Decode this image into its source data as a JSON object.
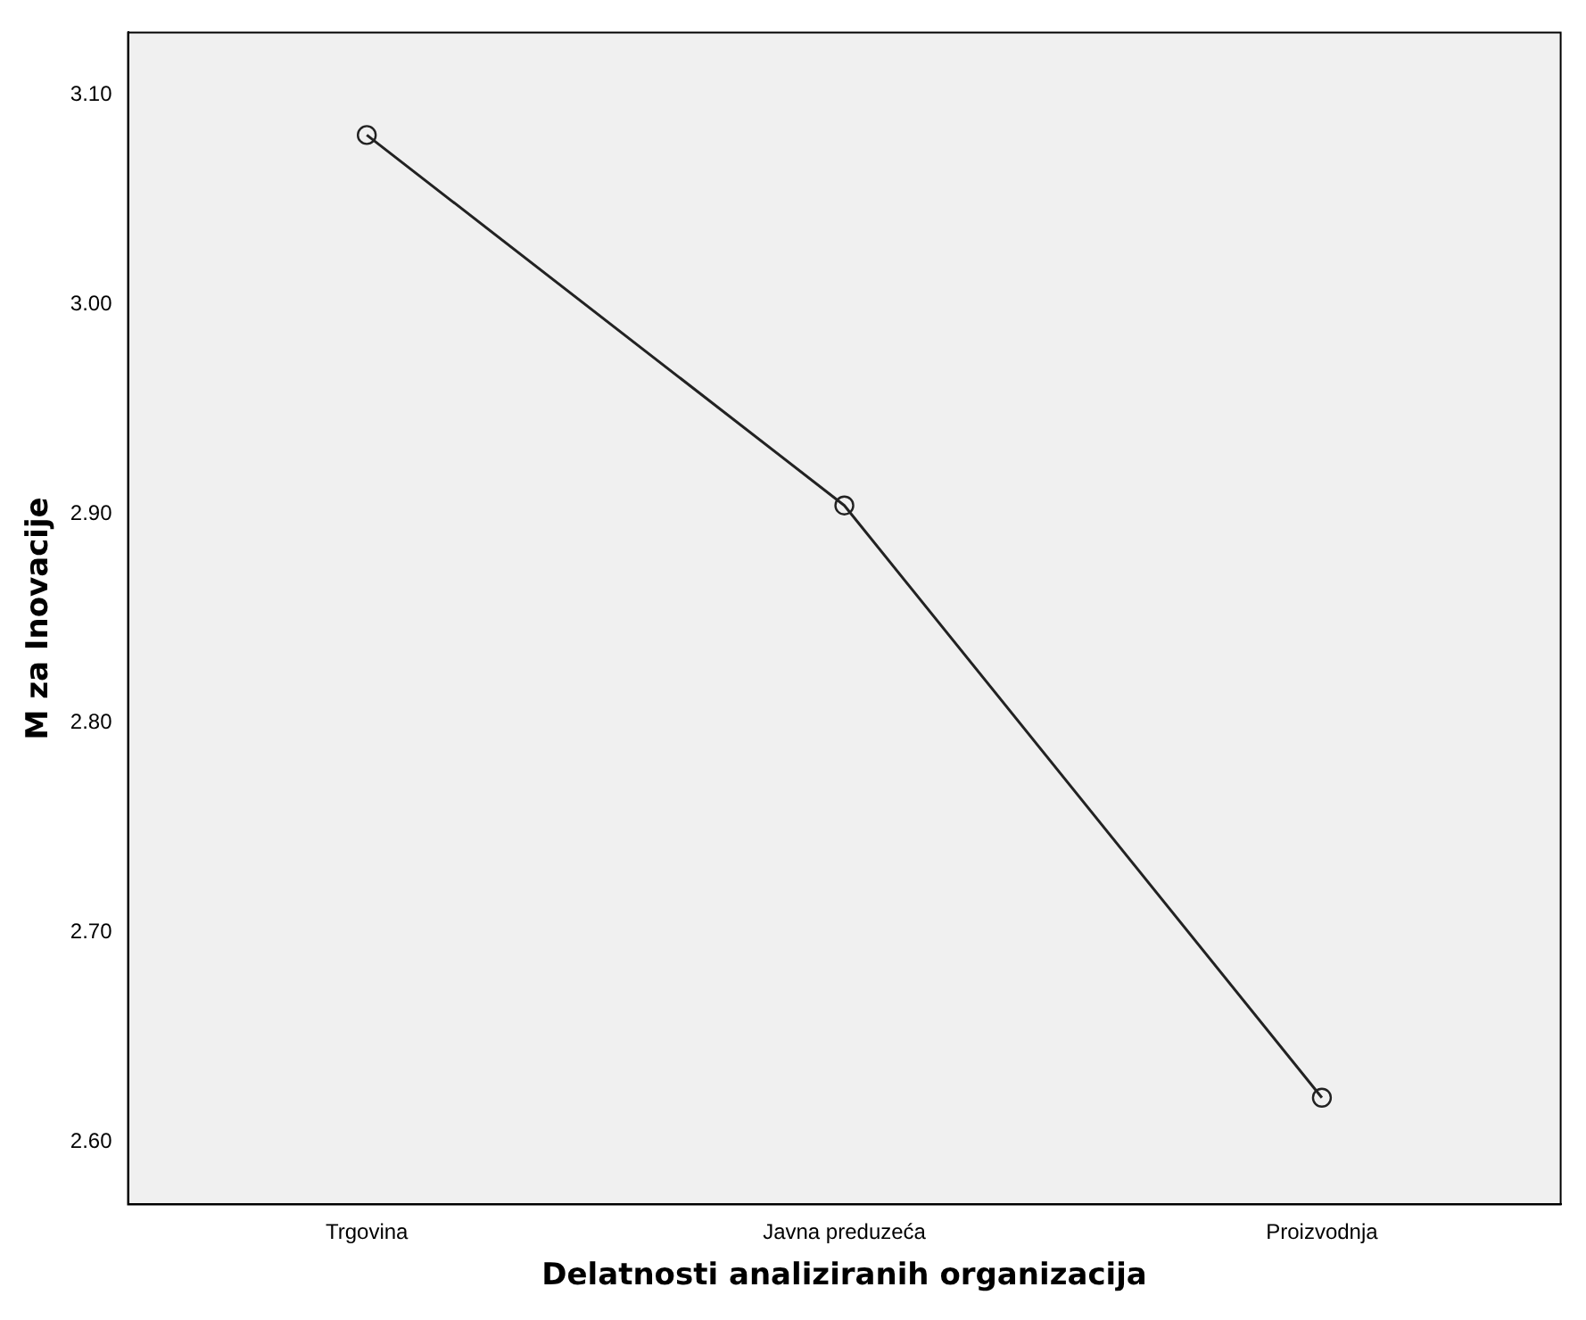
{
  "chart_data": {
    "type": "line",
    "xlabel": "Delatnosti analiziranih organizacija",
    "ylabel": "M za Inovacije",
    "categories": [
      "Trgovina",
      "Javna preduzeća",
      "Proizvodnja"
    ],
    "series": [
      {
        "color": "#222222",
        "values": [
          3.081,
          2.904,
          2.621
        ]
      }
    ],
    "ylim": [
      2.57,
      3.13
    ],
    "yticks": [
      {
        "value": 2.6,
        "label": "2.60"
      },
      {
        "value": 2.7,
        "label": "2.70"
      },
      {
        "value": 2.8,
        "label": "2.80"
      },
      {
        "value": 2.9,
        "label": "2.90"
      },
      {
        "value": 3.0,
        "label": "3.00"
      },
      {
        "value": 3.1,
        "label": "3.10"
      }
    ],
    "grid": false,
    "legend": false,
    "marker": "circle",
    "line_style": "solid"
  }
}
